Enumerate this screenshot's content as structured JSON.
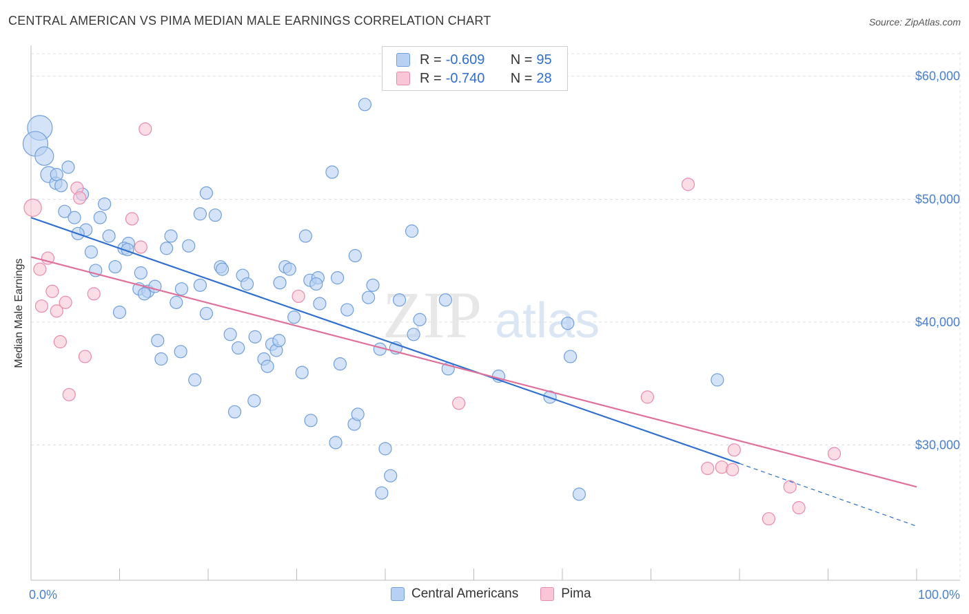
{
  "title": "CENTRAL AMERICAN VS PIMA MEDIAN MALE EARNINGS CORRELATION CHART",
  "source": "Source: ZipAtlas.com",
  "watermark": {
    "zip": "ZIP",
    "atlas": "atlas"
  },
  "legend": {
    "rows": [
      {
        "r_label": "R = ",
        "r_value": "-0.609",
        "n_label": "N = ",
        "n_value": "95"
      },
      {
        "r_label": "R = ",
        "r_value": "-0.740",
        "n_label": "N = ",
        "n_value": "28"
      }
    ]
  },
  "colors": {
    "blue_fill": "#b8d1f2",
    "blue_stroke": "#6f9fdc",
    "blue_line": "#2f6fd0",
    "pink_fill": "#f8c6d6",
    "pink_stroke": "#e88aab",
    "pink_line": "#e0709a",
    "grid": "#dddddd",
    "axis_text": "#4a7fd0"
  },
  "chart_data": {
    "type": "scatter",
    "title": "CENTRAL AMERICAN VS PIMA MEDIAN MALE EARNINGS CORRELATION CHART",
    "xlabel": "",
    "ylabel": "Median Male Earnings",
    "xlim": [
      0,
      100
    ],
    "ylim": [
      19000,
      62000
    ],
    "x_tick_labels": [
      "0.0%",
      "100.0%"
    ],
    "y_ticks": [
      30000,
      40000,
      50000,
      60000
    ],
    "y_tick_labels": [
      "$30,000",
      "$40,000",
      "$50,000",
      "$60,000"
    ],
    "grid": true,
    "legend_position": "top-center",
    "series": [
      {
        "name": "Central Americans",
        "color": "#b8d1f2",
        "trend": {
          "x": [
            0,
            80
          ],
          "y": [
            48500,
            28500
          ],
          "dashed_extension_to": [
            100,
            23400
          ]
        },
        "points": [
          [
            1,
            55800,
            2
          ],
          [
            0.5,
            54500,
            2
          ],
          [
            1.5,
            53500,
            1.5
          ],
          [
            2,
            52000,
            1.3
          ],
          [
            2.8,
            51300,
            1
          ],
          [
            4.2,
            52600,
            1
          ],
          [
            2.9,
            52000,
            1
          ],
          [
            3.4,
            51100,
            1
          ],
          [
            5.8,
            50400,
            1
          ],
          [
            3.8,
            49000,
            1
          ],
          [
            8.3,
            49600,
            1
          ],
          [
            4.9,
            48500,
            1
          ],
          [
            7.8,
            48500,
            1
          ],
          [
            6.2,
            47500,
            1
          ],
          [
            5.3,
            47200,
            1
          ],
          [
            8.8,
            47000,
            1
          ],
          [
            11,
            46400,
            1
          ],
          [
            10.5,
            46000,
            1
          ],
          [
            10.9,
            45900,
            1
          ],
          [
            6.8,
            45700,
            1
          ],
          [
            15.8,
            47000,
            1
          ],
          [
            19.8,
            50500,
            1
          ],
          [
            19.1,
            48800,
            1
          ],
          [
            20.8,
            48700,
            1
          ],
          [
            15.3,
            46000,
            1
          ],
          [
            17.8,
            46200,
            1
          ],
          [
            7.3,
            44200,
            1
          ],
          [
            9.5,
            44500,
            1
          ],
          [
            12.4,
            44000,
            1
          ],
          [
            12.2,
            42700,
            1
          ],
          [
            13.2,
            42500,
            1
          ],
          [
            12.8,
            42300,
            1
          ],
          [
            14,
            42900,
            1
          ],
          [
            17,
            42700,
            1
          ],
          [
            19.1,
            43000,
            1
          ],
          [
            21.4,
            44500,
            1
          ],
          [
            21.6,
            44300,
            1
          ],
          [
            23.9,
            43800,
            1
          ],
          [
            24.4,
            43100,
            1
          ],
          [
            28.1,
            43200,
            1
          ],
          [
            28.7,
            44500,
            1
          ],
          [
            29.2,
            44300,
            1
          ],
          [
            31.5,
            43400,
            1
          ],
          [
            32.4,
            43600,
            1
          ],
          [
            32.2,
            43100,
            1
          ],
          [
            34.6,
            43600,
            1
          ],
          [
            38.6,
            43000,
            1
          ],
          [
            10,
            40800,
            1
          ],
          [
            16.4,
            41600,
            1
          ],
          [
            19.8,
            40700,
            1
          ],
          [
            29.7,
            40400,
            1
          ],
          [
            32.6,
            41500,
            1
          ],
          [
            35.7,
            41000,
            1
          ],
          [
            38.1,
            42000,
            1
          ],
          [
            46.8,
            41800,
            1
          ],
          [
            41.6,
            41800,
            1
          ],
          [
            43.9,
            40200,
            1
          ],
          [
            36.6,
            45400,
            1
          ],
          [
            34,
            52200,
            1
          ],
          [
            31,
            47000,
            1
          ],
          [
            43,
            47400,
            1
          ],
          [
            37.7,
            57700,
            1
          ],
          [
            14.3,
            38500,
            1
          ],
          [
            14.7,
            37000,
            1
          ],
          [
            16.9,
            37600,
            1
          ],
          [
            18.5,
            35300,
            1
          ],
          [
            22.5,
            39000,
            1
          ],
          [
            23.4,
            37900,
            1
          ],
          [
            25.3,
            38800,
            1
          ],
          [
            26.3,
            37000,
            1
          ],
          [
            26.7,
            36400,
            1
          ],
          [
            27.2,
            38200,
            1
          ],
          [
            27.7,
            37700,
            1
          ],
          [
            28,
            38500,
            1
          ],
          [
            30.6,
            35900,
            1
          ],
          [
            34.9,
            36600,
            1
          ],
          [
            39.4,
            37800,
            1
          ],
          [
            41.2,
            37900,
            1
          ],
          [
            43.2,
            39000,
            1
          ],
          [
            47.1,
            36200,
            1
          ],
          [
            52.8,
            35600,
            1
          ],
          [
            58.6,
            33900,
            1
          ],
          [
            60.6,
            39900,
            1
          ],
          [
            60.9,
            37200,
            1
          ],
          [
            77.5,
            35300,
            1
          ],
          [
            25.2,
            33600,
            1
          ],
          [
            23,
            32700,
            1
          ],
          [
            31.6,
            32000,
            1
          ],
          [
            36.5,
            31700,
            1
          ],
          [
            36.9,
            32500,
            1
          ],
          [
            34.4,
            30200,
            1
          ],
          [
            40,
            29700,
            1
          ],
          [
            40.6,
            27500,
            1
          ],
          [
            39.6,
            26100,
            1
          ],
          [
            61.9,
            26000,
            1
          ]
        ]
      },
      {
        "name": "Pima",
        "color": "#f8c6d6",
        "trend": {
          "x": [
            0,
            100
          ],
          "y": [
            45300,
            26600
          ]
        },
        "points": [
          [
            0.2,
            49300,
            1.4
          ],
          [
            12.9,
            55700,
            1
          ],
          [
            5.2,
            50900,
            1
          ],
          [
            5.5,
            50100,
            1
          ],
          [
            11.4,
            48400,
            1
          ],
          [
            12.4,
            46100,
            1
          ],
          [
            1.9,
            45200,
            1
          ],
          [
            1,
            44300,
            1
          ],
          [
            2.4,
            42500,
            1
          ],
          [
            7.1,
            42300,
            1
          ],
          [
            3.9,
            41600,
            1
          ],
          [
            1.2,
            41300,
            1
          ],
          [
            2.9,
            40900,
            1
          ],
          [
            3.3,
            38400,
            1
          ],
          [
            6.1,
            37200,
            1
          ],
          [
            4.3,
            34100,
            1
          ],
          [
            30.2,
            42100,
            1
          ],
          [
            48.3,
            33400,
            1
          ],
          [
            69.6,
            33900,
            1
          ],
          [
            74.2,
            51200,
            1
          ],
          [
            79.4,
            29600,
            1
          ],
          [
            76.4,
            28100,
            1
          ],
          [
            78,
            28200,
            1
          ],
          [
            79.2,
            28000,
            1
          ],
          [
            90.7,
            29300,
            1
          ],
          [
            85.7,
            26600,
            1
          ],
          [
            86.7,
            24900,
            1
          ],
          [
            83.3,
            24000,
            1
          ]
        ]
      }
    ]
  },
  "bottom_legend": [
    "Central Americans",
    "Pima"
  ]
}
